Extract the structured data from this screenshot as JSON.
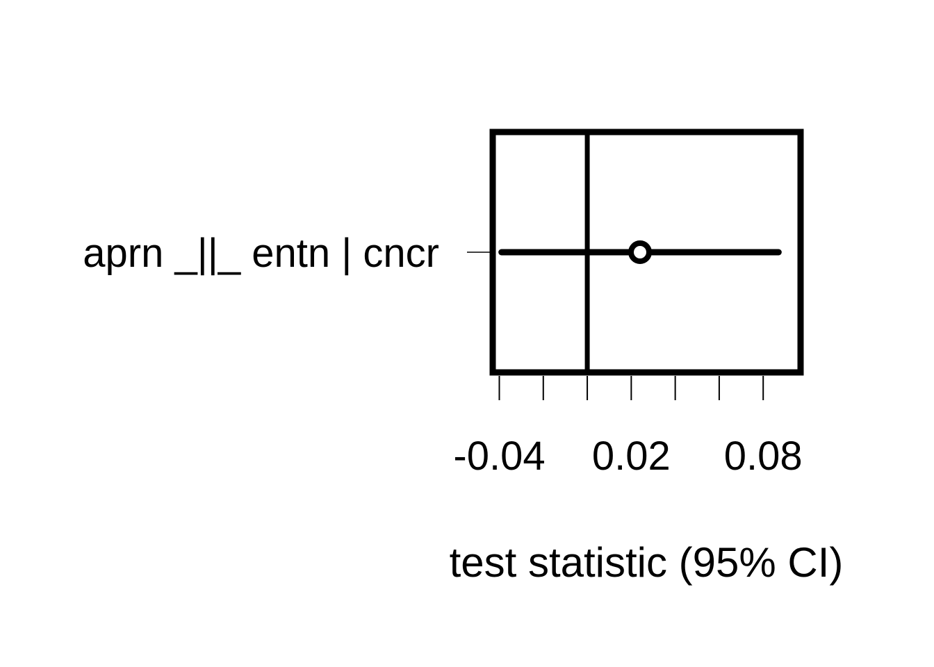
{
  "chart_data": {
    "type": "forest",
    "xlabel": "test statistic (95% CI)",
    "xlim": [
      -0.043,
      0.097
    ],
    "x_ticks": [
      -0.04,
      -0.02,
      0,
      0.02,
      0.04,
      0.06,
      0.08
    ],
    "x_tick_labels": [
      "-0.04",
      "0.02",
      "0.08"
    ],
    "x_tick_labels_at": [
      -0.04,
      0.02,
      0.08
    ],
    "reference_line": 0,
    "rows": [
      {
        "label": "aprn _||_ entn | cncr",
        "estimate": 0.024,
        "ci_lower": -0.039,
        "ci_upper": 0.087
      }
    ],
    "grid": false,
    "legend": "none"
  }
}
